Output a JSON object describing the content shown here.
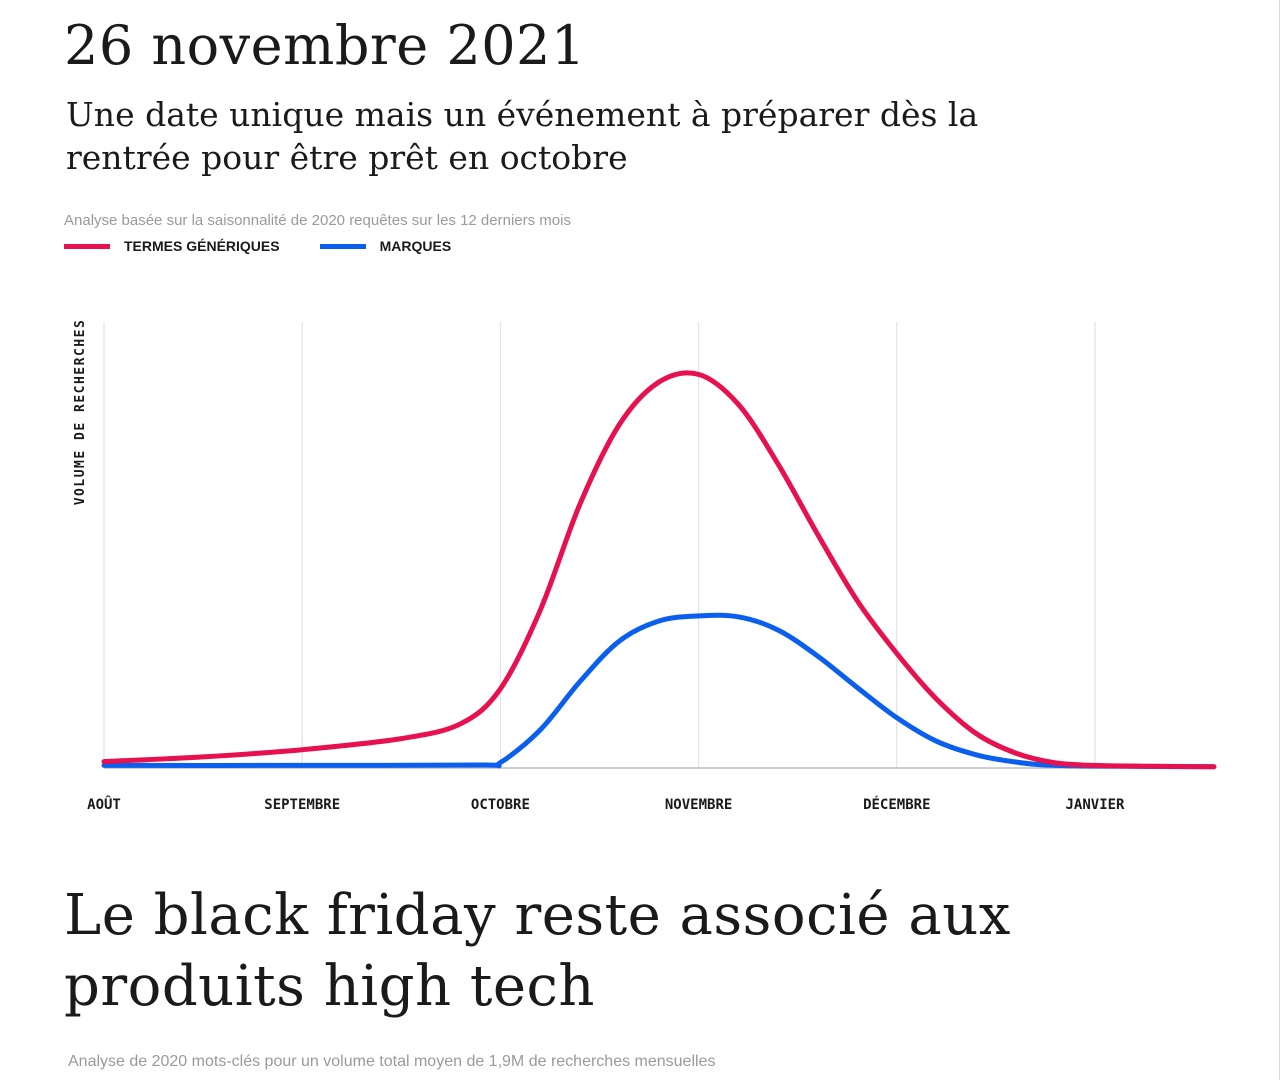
{
  "header": {
    "title": "26 novembre 2021",
    "subtitle": "Une date unique mais un événement à préparer dès la rentrée pour être prêt en octobre"
  },
  "chart_caption": "Analyse basée sur la saisonnalité de 2020 requêtes sur les 12 derniers mois",
  "chart_data": {
    "type": "line",
    "title": "",
    "ylabel": "VOLUME DE RECHERCHES",
    "xlabel": "",
    "x_ticks": [
      "AOÛT",
      "SEPTEMBRE",
      "OCTOBRE",
      "NOVEMBRE",
      "DÉCEMBRE",
      "JANVIER"
    ],
    "x_domain": [
      0,
      5.6
    ],
    "ylim": [
      0,
      100
    ],
    "grid": "vertical",
    "legend_position": "top-left",
    "series": [
      {
        "name": "TERMES GÉNÉRIQUES",
        "color": "#e8114f",
        "points": [
          [
            0,
            1.5
          ],
          [
            0.5,
            2.6
          ],
          [
            1,
            4.3
          ],
          [
            1.5,
            6.9
          ],
          [
            1.8,
            10.4
          ],
          [
            2.0,
            18.6
          ],
          [
            2.2,
            36.9
          ],
          [
            2.4,
            61.8
          ],
          [
            2.6,
            80.6
          ],
          [
            2.8,
            90.6
          ],
          [
            3.0,
            92.4
          ],
          [
            3.2,
            85.4
          ],
          [
            3.4,
            71.4
          ],
          [
            3.6,
            54.9
          ],
          [
            3.8,
            39.3
          ],
          [
            4.0,
            26.9
          ],
          [
            4.2,
            16.2
          ],
          [
            4.4,
            8.1
          ],
          [
            4.6,
            3.5
          ],
          [
            4.8,
            1.2
          ],
          [
            5.0,
            0.6
          ],
          [
            5.3,
            0.4
          ],
          [
            5.6,
            0.3
          ]
        ]
      },
      {
        "name": "MARQUES",
        "color": "#0b5fef",
        "points": [
          [
            0,
            0.6
          ],
          [
            1.0,
            0.6
          ],
          [
            1.9,
            0.7
          ],
          [
            2.0,
            1.3
          ],
          [
            2.2,
            8.9
          ],
          [
            2.4,
            20.2
          ],
          [
            2.6,
            29.8
          ],
          [
            2.8,
            34.5
          ],
          [
            3.0,
            35.7
          ],
          [
            3.2,
            35.5
          ],
          [
            3.4,
            32.4
          ],
          [
            3.6,
            26.3
          ],
          [
            3.8,
            18.9
          ],
          [
            4.0,
            11.8
          ],
          [
            4.2,
            6.3
          ],
          [
            4.4,
            3.1
          ],
          [
            4.6,
            1.4
          ],
          [
            4.8,
            0.6
          ],
          [
            5.2,
            0.4
          ],
          [
            5.6,
            0.3
          ]
        ]
      }
    ]
  },
  "section2": {
    "title": "Le black friday reste associé aux produits high tech",
    "caption": "Analyse de 2020 mots-clés pour un volume total moyen de 1,9M de recherches mensuelles"
  }
}
